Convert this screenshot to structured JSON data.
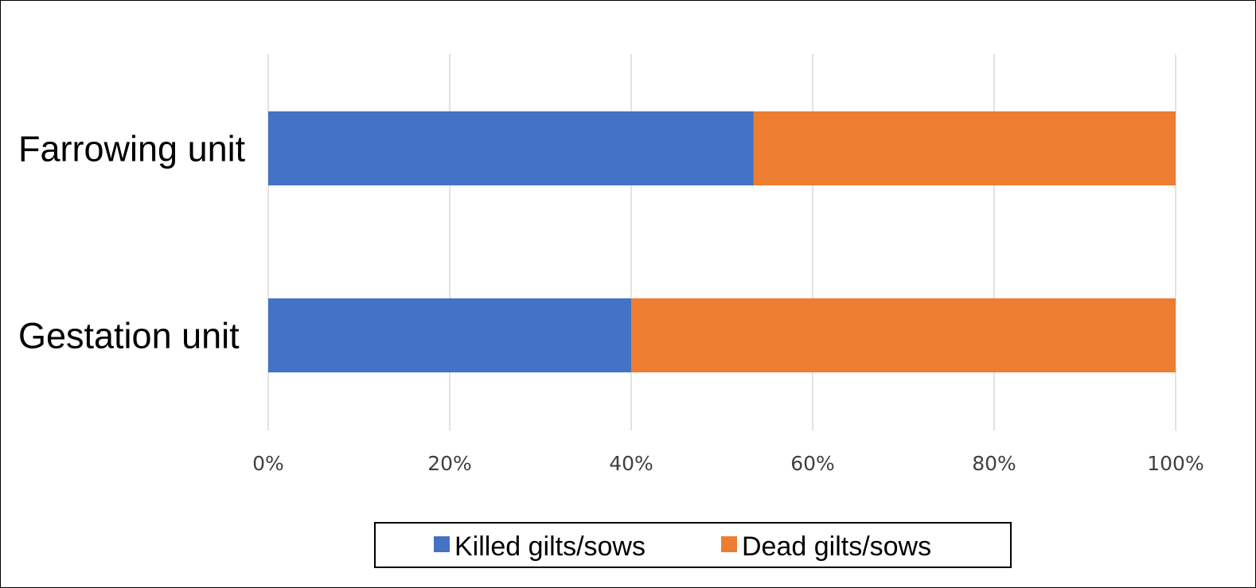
{
  "chart_data": {
    "type": "bar",
    "orientation": "horizontal",
    "stacked": "percent",
    "categories": [
      "Farrowing unit",
      "Gestation unit"
    ],
    "series": [
      {
        "name": "Killed gilts/sows",
        "values": [
          53.5,
          40
        ],
        "color": "#4472C4"
      },
      {
        "name": "Dead gilts/sows",
        "values": [
          46.5,
          60
        ],
        "color": "#ED7D31"
      }
    ],
    "xlim": [
      0,
      100
    ],
    "xticks": [
      0,
      20,
      40,
      60,
      80,
      100
    ],
    "xtick_labels": [
      "0%",
      "20%",
      "40%",
      "60%",
      "80%",
      "100%"
    ],
    "grid": true,
    "legend": "bottom"
  }
}
